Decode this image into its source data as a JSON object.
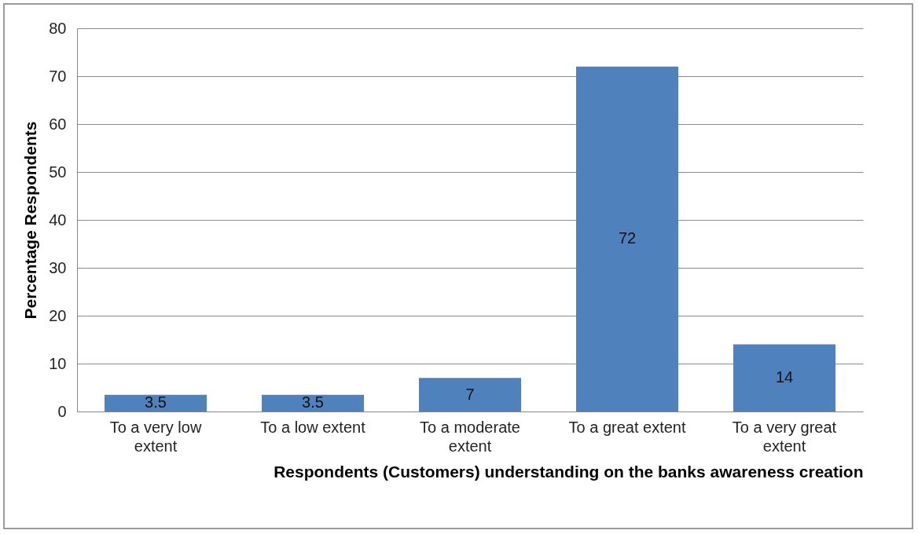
{
  "chart_data": {
    "type": "bar",
    "xlabel": "Respondents (Customers) understanding on the banks awareness creation",
    "ylabel": "Percentage Respondents",
    "categories": [
      "To a very low extent",
      "To a low extent",
      "To a moderate extent",
      "To a great extent",
      "To a very great extent"
    ],
    "values": [
      3.5,
      3.5,
      7,
      72,
      14
    ],
    "color": "#4f81bd",
    "ylim": [
      0,
      80
    ],
    "yticks": [
      0,
      10,
      20,
      30,
      40,
      50,
      60,
      70,
      80
    ],
    "grid": "y",
    "data_labels": true
  }
}
